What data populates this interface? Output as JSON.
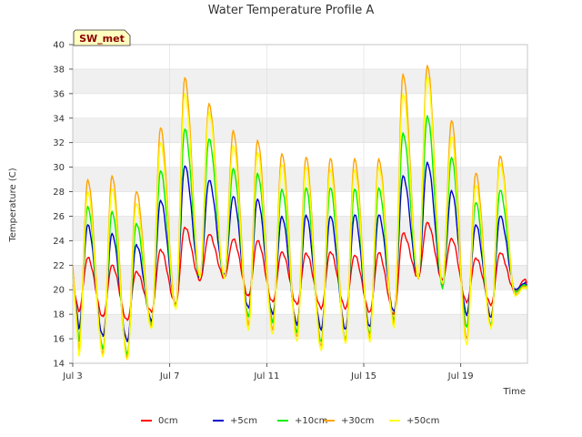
{
  "chart_data": {
    "type": "line",
    "title": "Water Temperature Profile A",
    "xlabel": "Time",
    "ylabel": "Temperature (C)",
    "site_label": "SW_met",
    "ylim": [
      14,
      40
    ],
    "yticks": [
      14,
      16,
      18,
      20,
      22,
      24,
      26,
      28,
      30,
      32,
      34,
      36,
      38,
      40
    ],
    "xlim": [
      "2024-07-03",
      "2024-07-21T18:00"
    ],
    "xticks": [
      {
        "date": "2024-07-03",
        "label": "Jul 3"
      },
      {
        "date": "2024-07-07",
        "label": "Jul 7"
      },
      {
        "date": "2024-07-11",
        "label": "Jul 11"
      },
      {
        "date": "2024-07-15",
        "label": "Jul 15"
      },
      {
        "date": "2024-07-19",
        "label": "Jul 19"
      }
    ],
    "grid": true,
    "legend_position": "bottom",
    "daily_dates": [
      "2024-07-03",
      "2024-07-04",
      "2024-07-05",
      "2024-07-06",
      "2024-07-07",
      "2024-07-08",
      "2024-07-09",
      "2024-07-10",
      "2024-07-11",
      "2024-07-12",
      "2024-07-13",
      "2024-07-14",
      "2024-07-15",
      "2024-07-16",
      "2024-07-17",
      "2024-07-18",
      "2024-07-19",
      "2024-07-20",
      "2024-07-21"
    ],
    "series": [
      {
        "name": "0cm",
        "color": "#ff0000",
        "daily_min": [
          18.2,
          17.8,
          17.5,
          18.2,
          18.8,
          20.8,
          21.0,
          19.5,
          19.0,
          18.8,
          18.5,
          18.5,
          18.2,
          18.0,
          21.0,
          20.8,
          19.0,
          18.8,
          19.8
        ],
        "daily_max": [
          22.6,
          22.0,
          21.5,
          23.3,
          25.1,
          24.5,
          24.1,
          24.0,
          23.1,
          23.0,
          23.1,
          22.8,
          23.0,
          24.6,
          25.5,
          24.2,
          22.6,
          23.0,
          20.8
        ]
      },
      {
        "name": "+5cm",
        "color": "#0000cc",
        "daily_min": [
          16.8,
          16.2,
          15.8,
          17.5,
          18.8,
          21.0,
          21.2,
          18.5,
          18.0,
          17.2,
          16.8,
          16.8,
          17.0,
          18.2,
          21.0,
          20.5,
          18.0,
          17.8,
          20.0
        ],
        "daily_max": [
          25.3,
          24.6,
          23.7,
          27.3,
          30.1,
          28.9,
          27.6,
          27.4,
          26.0,
          26.1,
          26.0,
          26.1,
          26.1,
          29.3,
          30.4,
          28.1,
          25.3,
          26.0,
          20.5
        ]
      },
      {
        "name": "+10cm",
        "color": "#00ee00",
        "daily_min": [
          15.8,
          15.2,
          14.8,
          17.2,
          18.6,
          21.0,
          21.0,
          17.8,
          17.4,
          16.6,
          15.8,
          16.0,
          16.4,
          17.5,
          21.0,
          20.2,
          17.0,
          17.2,
          19.8
        ],
        "daily_max": [
          26.8,
          26.4,
          25.4,
          29.7,
          33.1,
          32.3,
          29.9,
          29.5,
          28.2,
          28.3,
          28.3,
          28.2,
          28.3,
          32.8,
          34.2,
          30.8,
          27.1,
          28.1,
          20.4
        ]
      },
      {
        "name": "+30cm",
        "color": "#ffa500",
        "daily_min": [
          15.0,
          14.8,
          14.5,
          17.0,
          18.6,
          21.0,
          21.0,
          17.2,
          16.8,
          16.2,
          15.4,
          15.8,
          16.0,
          17.2,
          21.0,
          20.5,
          16.0,
          17.0,
          19.6
        ],
        "daily_max": [
          29.0,
          29.3,
          28.0,
          33.2,
          37.3,
          35.2,
          33.0,
          32.2,
          31.1,
          30.8,
          30.7,
          30.7,
          30.7,
          37.6,
          38.3,
          33.8,
          29.5,
          30.9,
          20.3
        ]
      },
      {
        "name": "+50cm",
        "color": "#ffff00",
        "daily_min": [
          14.6,
          14.6,
          14.3,
          16.8,
          18.4,
          21.0,
          21.0,
          16.8,
          16.4,
          15.8,
          15.0,
          15.6,
          15.8,
          17.0,
          21.0,
          20.5,
          15.5,
          16.8,
          19.5
        ],
        "daily_max": [
          28.0,
          28.2,
          27.0,
          32.0,
          36.0,
          34.5,
          31.8,
          31.2,
          30.2,
          30.0,
          29.8,
          29.8,
          30.0,
          36.0,
          37.4,
          32.5,
          28.5,
          30.3,
          20.2
        ]
      }
    ]
  }
}
